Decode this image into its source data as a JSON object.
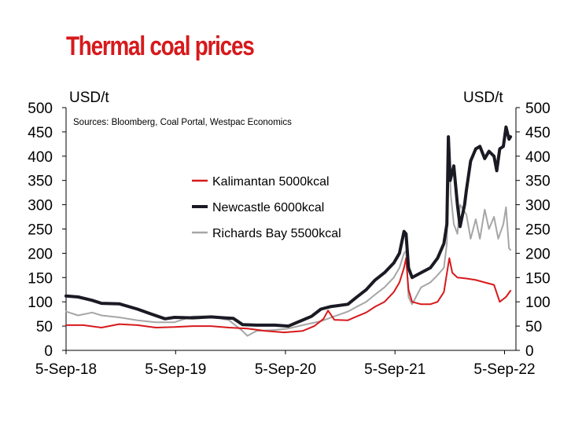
{
  "title": "Thermal coal prices",
  "chart_data": {
    "type": "line",
    "title": "Thermal coal prices",
    "y_unit_left": "USD/t",
    "y_unit_right": "USD/t",
    "source": "Sources: Bloomberg, Coal Portal, Westpac Economics",
    "ylim": [
      0,
      500
    ],
    "yticks": [
      0,
      50,
      100,
      150,
      200,
      250,
      300,
      350,
      400,
      450,
      500
    ],
    "xlim": [
      "2018-09-05",
      "2022-10-13"
    ],
    "xticks": [
      "5-Sep-18",
      "5-Sep-19",
      "5-Sep-20",
      "5-Sep-21",
      "5-Sep-22"
    ],
    "xtick_dates": [
      "2018-09-05",
      "2019-09-05",
      "2020-09-05",
      "2021-09-05",
      "2022-09-05"
    ],
    "grid": false,
    "legend_position": "center",
    "series": [
      {
        "name": "Kalimantan 5000kcal",
        "color": "#d7191c",
        "points": [
          [
            "2018-09-05",
            52
          ],
          [
            "2018-11-01",
            52
          ],
          [
            "2019-01-01",
            47
          ],
          [
            "2019-03-01",
            54
          ],
          [
            "2019-05-01",
            52
          ],
          [
            "2019-07-01",
            47
          ],
          [
            "2019-09-01",
            48
          ],
          [
            "2019-11-01",
            50
          ],
          [
            "2020-01-01",
            50
          ],
          [
            "2020-03-01",
            47
          ],
          [
            "2020-05-01",
            45
          ],
          [
            "2020-07-01",
            40
          ],
          [
            "2020-09-01",
            37
          ],
          [
            "2020-11-01",
            40
          ],
          [
            "2020-12-10",
            50
          ],
          [
            "2021-01-10",
            65
          ],
          [
            "2021-01-25",
            82
          ],
          [
            "2021-02-15",
            63
          ],
          [
            "2021-04-01",
            62
          ],
          [
            "2021-05-01",
            70
          ],
          [
            "2021-06-01",
            78
          ],
          [
            "2021-07-01",
            90
          ],
          [
            "2021-08-01",
            100
          ],
          [
            "2021-09-01",
            120
          ],
          [
            "2021-09-20",
            140
          ],
          [
            "2021-10-05",
            170
          ],
          [
            "2021-10-12",
            190
          ],
          [
            "2021-10-20",
            125
          ],
          [
            "2021-11-01",
            100
          ],
          [
            "2021-12-01",
            95
          ],
          [
            "2022-01-01",
            95
          ],
          [
            "2022-01-25",
            100
          ],
          [
            "2022-02-15",
            120
          ],
          [
            "2022-03-01",
            175
          ],
          [
            "2022-03-05",
            190
          ],
          [
            "2022-03-15",
            160
          ],
          [
            "2022-04-01",
            150
          ],
          [
            "2022-05-01",
            148
          ],
          [
            "2022-06-01",
            145
          ],
          [
            "2022-07-01",
            140
          ],
          [
            "2022-08-01",
            135
          ],
          [
            "2022-08-20",
            100
          ],
          [
            "2022-09-10",
            110
          ],
          [
            "2022-09-25",
            123
          ]
        ]
      },
      {
        "name": "Newcastle 6000kcal",
        "color": "#1a1a24",
        "points": [
          [
            "2018-09-05",
            112
          ],
          [
            "2018-10-15",
            110
          ],
          [
            "2018-12-01",
            103
          ],
          [
            "2019-01-01",
            97
          ],
          [
            "2019-03-01",
            96
          ],
          [
            "2019-05-01",
            85
          ],
          [
            "2019-06-15",
            75
          ],
          [
            "2019-08-01",
            65
          ],
          [
            "2019-09-01",
            68
          ],
          [
            "2019-11-01",
            67
          ],
          [
            "2020-01-01",
            69
          ],
          [
            "2020-02-15",
            67
          ],
          [
            "2020-03-15",
            66
          ],
          [
            "2020-04-15",
            53
          ],
          [
            "2020-06-01",
            52
          ],
          [
            "2020-08-01",
            52
          ],
          [
            "2020-09-15",
            50
          ],
          [
            "2020-10-15",
            58
          ],
          [
            "2020-12-01",
            70
          ],
          [
            "2021-01-01",
            85
          ],
          [
            "2021-02-01",
            90
          ],
          [
            "2021-04-01",
            95
          ],
          [
            "2021-05-01",
            110
          ],
          [
            "2021-06-01",
            125
          ],
          [
            "2021-07-01",
            145
          ],
          [
            "2021-08-01",
            160
          ],
          [
            "2021-09-01",
            180
          ],
          [
            "2021-09-20",
            200
          ],
          [
            "2021-10-05",
            245
          ],
          [
            "2021-10-12",
            240
          ],
          [
            "2021-10-20",
            170
          ],
          [
            "2021-11-01",
            150
          ],
          [
            "2021-12-01",
            160
          ],
          [
            "2022-01-01",
            170
          ],
          [
            "2022-01-25",
            190
          ],
          [
            "2022-02-15",
            220
          ],
          [
            "2022-02-25",
            260
          ],
          [
            "2022-03-02",
            440
          ],
          [
            "2022-03-08",
            350
          ],
          [
            "2022-03-20",
            380
          ],
          [
            "2022-04-01",
            300
          ],
          [
            "2022-04-10",
            255
          ],
          [
            "2022-04-25",
            300
          ],
          [
            "2022-05-01",
            330
          ],
          [
            "2022-05-15",
            390
          ],
          [
            "2022-06-01",
            415
          ],
          [
            "2022-06-15",
            420
          ],
          [
            "2022-07-01",
            395
          ],
          [
            "2022-07-15",
            410
          ],
          [
            "2022-08-01",
            400
          ],
          [
            "2022-08-10",
            370
          ],
          [
            "2022-08-20",
            415
          ],
          [
            "2022-09-01",
            420
          ],
          [
            "2022-09-10",
            460
          ],
          [
            "2022-09-20",
            435
          ],
          [
            "2022-09-25",
            440
          ]
        ]
      },
      {
        "name": "Richards Bay 5500kcal",
        "color": "#a6a6a6",
        "points": [
          [
            "2018-09-05",
            80
          ],
          [
            "2018-10-15",
            72
          ],
          [
            "2018-12-01",
            78
          ],
          [
            "2019-01-01",
            72
          ],
          [
            "2019-03-01",
            68
          ],
          [
            "2019-05-01",
            62
          ],
          [
            "2019-07-01",
            58
          ],
          [
            "2019-09-01",
            58
          ],
          [
            "2019-11-01",
            70
          ],
          [
            "2020-01-01",
            70
          ],
          [
            "2020-03-01",
            62
          ],
          [
            "2020-04-15",
            40
          ],
          [
            "2020-05-01",
            30
          ],
          [
            "2020-06-01",
            40
          ],
          [
            "2020-08-01",
            42
          ],
          [
            "2020-09-15",
            45
          ],
          [
            "2020-11-01",
            52
          ],
          [
            "2021-01-01",
            60
          ],
          [
            "2021-02-15",
            70
          ],
          [
            "2021-04-01",
            80
          ],
          [
            "2021-05-01",
            90
          ],
          [
            "2021-06-01",
            100
          ],
          [
            "2021-07-01",
            115
          ],
          [
            "2021-08-01",
            130
          ],
          [
            "2021-09-01",
            150
          ],
          [
            "2021-09-20",
            170
          ],
          [
            "2021-10-05",
            200
          ],
          [
            "2021-10-12",
            205
          ],
          [
            "2021-10-20",
            110
          ],
          [
            "2021-11-01",
            95
          ],
          [
            "2021-12-01",
            130
          ],
          [
            "2022-01-01",
            140
          ],
          [
            "2022-01-25",
            155
          ],
          [
            "2022-02-15",
            170
          ],
          [
            "2022-02-25",
            220
          ],
          [
            "2022-03-03",
            425
          ],
          [
            "2022-03-10",
            320
          ],
          [
            "2022-03-20",
            260
          ],
          [
            "2022-04-01",
            240
          ],
          [
            "2022-04-10",
            300
          ],
          [
            "2022-05-01",
            280
          ],
          [
            "2022-05-15",
            230
          ],
          [
            "2022-06-01",
            270
          ],
          [
            "2022-06-15",
            230
          ],
          [
            "2022-07-01",
            290
          ],
          [
            "2022-07-15",
            250
          ],
          [
            "2022-08-01",
            275
          ],
          [
            "2022-08-15",
            230
          ],
          [
            "2022-09-01",
            260
          ],
          [
            "2022-09-10",
            295
          ],
          [
            "2022-09-20",
            210
          ],
          [
            "2022-09-25",
            207
          ]
        ]
      }
    ]
  }
}
